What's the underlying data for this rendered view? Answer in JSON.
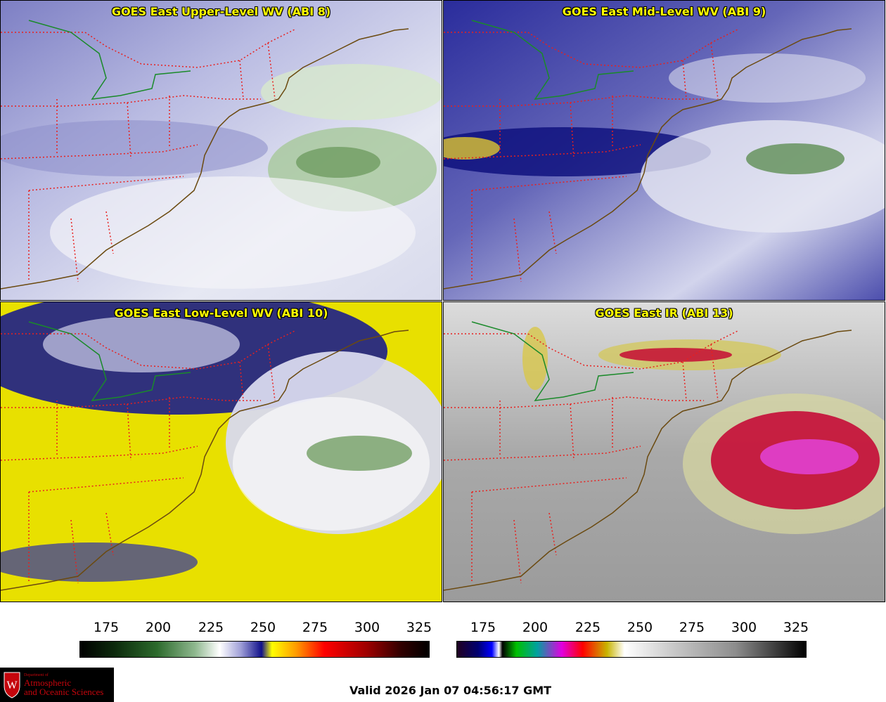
{
  "panels": [
    {
      "title": "GOES East Upper-Level WV (ABI 8)",
      "palette": "wv-upper"
    },
    {
      "title": "GOES East Mid-Level WV (ABI 9)",
      "palette": "wv-mid"
    },
    {
      "title": "GOES East Low-Level WV (ABI 10)",
      "palette": "wv-low"
    },
    {
      "title": "GOES East IR (ABI 13)",
      "palette": "ir"
    }
  ],
  "colorbars": {
    "wv": {
      "ticks": [
        "175",
        "200",
        "225",
        "250",
        "275",
        "300",
        "325"
      ]
    },
    "ir": {
      "ticks": [
        "175",
        "200",
        "225",
        "250",
        "275",
        "300",
        "325"
      ]
    }
  },
  "valid_time": "Valid 2026 Jan 07 04:56:17 GMT",
  "logo": {
    "line1": "Department of",
    "line2": "Atmospheric",
    "line3": "and Oceanic Sciences"
  },
  "colors": {
    "title_text": "#ffff00",
    "state_borders": "#e8201e",
    "coastline": "#6b4a10",
    "lake_line": "#1a8a2a"
  }
}
